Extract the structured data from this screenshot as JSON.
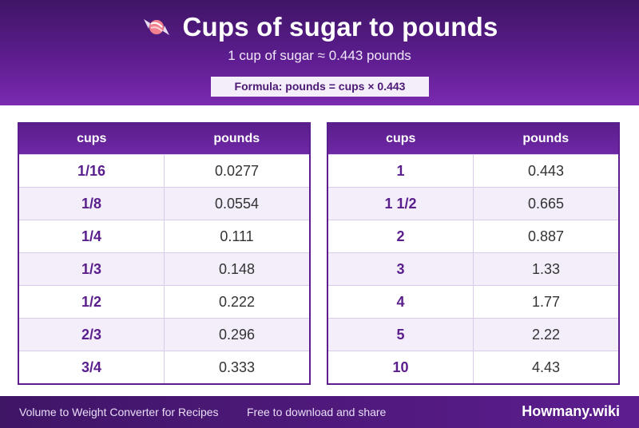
{
  "header": {
    "title": "Cups of sugar to pounds",
    "icon": "candy-icon",
    "subtitle": "1 cup of sugar ≈ 0.443 pounds",
    "formula": "Formula: pounds = cups × 0.443"
  },
  "tables": [
    {
      "headers": [
        "cups",
        "pounds"
      ],
      "rows": [
        [
          "1/16",
          "0.0277"
        ],
        [
          "1/8",
          "0.0554"
        ],
        [
          "1/4",
          "0.111"
        ],
        [
          "1/3",
          "0.148"
        ],
        [
          "1/2",
          "0.222"
        ],
        [
          "2/3",
          "0.296"
        ],
        [
          "3/4",
          "0.333"
        ]
      ]
    },
    {
      "headers": [
        "cups",
        "pounds"
      ],
      "rows": [
        [
          "1",
          "0.443"
        ],
        [
          "1 1/2",
          "0.665"
        ],
        [
          "2",
          "0.887"
        ],
        [
          "3",
          "1.33"
        ],
        [
          "4",
          "1.77"
        ],
        [
          "5",
          "2.22"
        ],
        [
          "10",
          "4.43"
        ]
      ]
    }
  ],
  "footer": {
    "left": "Volume to Weight Converter for Recipes",
    "middle": "Free to download and share",
    "brand": "Howmany.wiki"
  },
  "colors": {
    "primary": "#5d1d8f",
    "accent_text": "#5a1e8c",
    "alt_row": "#f3eefa"
  }
}
